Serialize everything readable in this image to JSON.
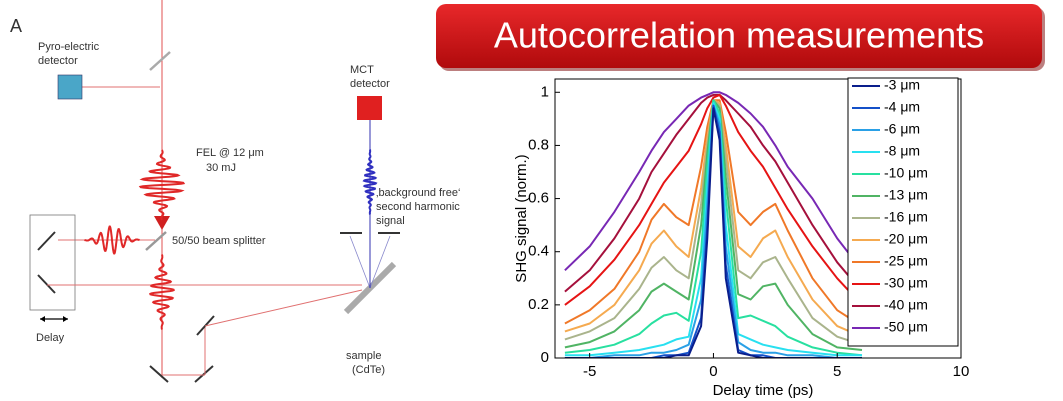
{
  "panel_label": "A",
  "banner": {
    "title": "Autocorrelation measurements"
  },
  "diagram": {
    "pyro_detector": [
      "Pyro-electric",
      "detector"
    ],
    "fel": [
      "FEL @ 12 μm",
      "30 mJ"
    ],
    "mct_detector": [
      "MCT",
      "detector"
    ],
    "signal": [
      "‚background free‘",
      "second harmonic",
      "signal"
    ],
    "beam_splitter": "50/50 beam splitter",
    "delay": "Delay",
    "sample": [
      "sample",
      "(CdTe)"
    ]
  },
  "chart_data": {
    "type": "line",
    "xlabel": "Delay time (ps)",
    "ylabel": "SHG signal (norm.)",
    "xlim": [
      -6.4,
      10
    ],
    "ylim": [
      0,
      1.05
    ],
    "xticks": [
      -5,
      0,
      5,
      10
    ],
    "yticks": [
      0,
      0.2,
      0.4,
      0.6,
      0.8,
      1
    ],
    "legend": "upper right",
    "x": [
      -6,
      -5,
      -4,
      -3,
      -2.5,
      -2,
      -1.5,
      -1,
      -0.5,
      -0.25,
      0,
      0.25,
      0.5,
      1,
      1.5,
      2,
      2.5,
      3,
      4,
      5,
      6
    ],
    "series": [
      {
        "name": "-3 μm",
        "color": "#0a1e8c",
        "values": [
          0,
          0,
          0,
          0,
          0,
          0,
          0.01,
          0.01,
          0.12,
          0.45,
          0.94,
          0.82,
          0.3,
          0.02,
          0.01,
          0,
          0,
          0,
          0,
          0,
          0
        ]
      },
      {
        "name": "-4 μm",
        "color": "#1450c8",
        "values": [
          0,
          0,
          0,
          0,
          0,
          0.01,
          0.01,
          0.02,
          0.15,
          0.5,
          0.95,
          0.85,
          0.35,
          0.03,
          0.01,
          0.01,
          0,
          0,
          0,
          0,
          0
        ]
      },
      {
        "name": "-6 μm",
        "color": "#2aa0e6",
        "values": [
          0,
          0,
          0.01,
          0.01,
          0.02,
          0.02,
          0.03,
          0.05,
          0.22,
          0.58,
          0.95,
          0.88,
          0.42,
          0.06,
          0.03,
          0.02,
          0.02,
          0.01,
          0.01,
          0,
          0
        ]
      },
      {
        "name": "-8 μm",
        "color": "#28e0f0",
        "values": [
          0.01,
          0.01,
          0.02,
          0.03,
          0.04,
          0.05,
          0.07,
          0.08,
          0.3,
          0.65,
          0.96,
          0.9,
          0.5,
          0.09,
          0.07,
          0.05,
          0.04,
          0.03,
          0.02,
          0.01,
          0.01
        ]
      },
      {
        "name": "-10 μm",
        "color": "#28e0a0",
        "values": [
          0.02,
          0.03,
          0.05,
          0.09,
          0.13,
          0.16,
          0.17,
          0.14,
          0.4,
          0.72,
          0.97,
          0.92,
          0.6,
          0.15,
          0.16,
          0.14,
          0.12,
          0.08,
          0.04,
          0.02,
          0.01
        ]
      },
      {
        "name": "-13 μm",
        "color": "#50b464",
        "values": [
          0.04,
          0.06,
          0.1,
          0.18,
          0.25,
          0.28,
          0.25,
          0.22,
          0.5,
          0.77,
          0.97,
          0.94,
          0.68,
          0.24,
          0.22,
          0.27,
          0.28,
          0.2,
          0.09,
          0.04,
          0.03
        ]
      },
      {
        "name": "-16 μm",
        "color": "#aab48c",
        "values": [
          0.07,
          0.1,
          0.15,
          0.26,
          0.34,
          0.38,
          0.33,
          0.3,
          0.58,
          0.8,
          0.97,
          0.95,
          0.75,
          0.33,
          0.3,
          0.36,
          0.38,
          0.3,
          0.15,
          0.08,
          0.05
        ]
      },
      {
        "name": "-20 μm",
        "color": "#f5aa50",
        "values": [
          0.1,
          0.13,
          0.2,
          0.33,
          0.43,
          0.48,
          0.42,
          0.38,
          0.64,
          0.83,
          0.97,
          0.96,
          0.8,
          0.42,
          0.38,
          0.45,
          0.48,
          0.38,
          0.22,
          0.12,
          0.08
        ]
      },
      {
        "name": "-25 μm",
        "color": "#f07828",
        "values": [
          0.13,
          0.18,
          0.26,
          0.4,
          0.52,
          0.58,
          0.53,
          0.5,
          0.72,
          0.87,
          0.97,
          0.97,
          0.85,
          0.55,
          0.5,
          0.55,
          0.58,
          0.48,
          0.3,
          0.18,
          0.12
        ]
      },
      {
        "name": "-30 μm",
        "color": "#e61414",
        "values": [
          0.2,
          0.27,
          0.37,
          0.5,
          0.58,
          0.66,
          0.72,
          0.78,
          0.88,
          0.94,
          0.98,
          0.99,
          0.95,
          0.85,
          0.78,
          0.72,
          0.64,
          0.56,
          0.42,
          0.3,
          0.2
        ]
      },
      {
        "name": "-40 μm",
        "color": "#a5103c",
        "values": [
          0.25,
          0.33,
          0.45,
          0.6,
          0.7,
          0.77,
          0.84,
          0.9,
          0.96,
          0.98,
          0.99,
          0.99,
          0.97,
          0.92,
          0.87,
          0.8,
          0.74,
          0.66,
          0.5,
          0.36,
          0.25
        ]
      },
      {
        "name": "-50 μm",
        "color": "#7828b4",
        "values": [
          0.33,
          0.42,
          0.55,
          0.7,
          0.78,
          0.85,
          0.9,
          0.95,
          0.98,
          0.99,
          1,
          1,
          0.99,
          0.96,
          0.92,
          0.87,
          0.8,
          0.72,
          0.6,
          0.45,
          0.33
        ]
      }
    ]
  }
}
